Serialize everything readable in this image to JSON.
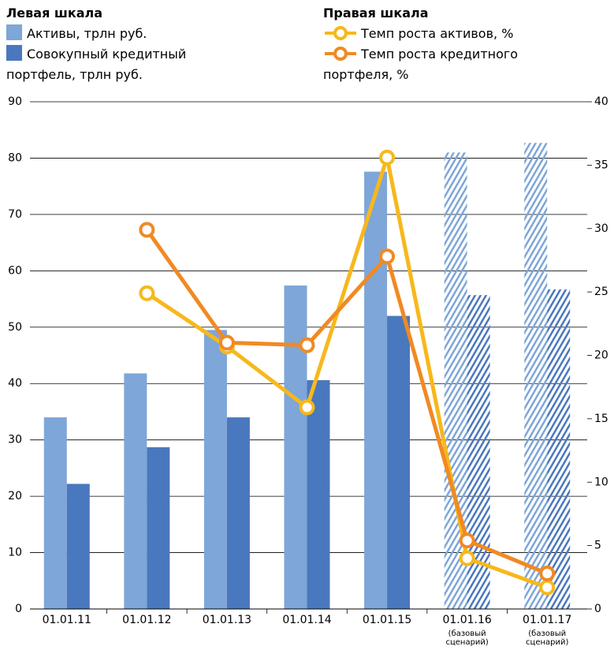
{
  "chart_data": {
    "type": "bar_line",
    "legend_left_title": "Левая шкала",
    "legend_right_title": "Правая шкала",
    "categories": [
      "01.01.11",
      "01.01.12",
      "01.01.13",
      "01.01.14",
      "01.01.15",
      "01.01.16",
      "01.01.17"
    ],
    "category_notes": [
      null,
      null,
      null,
      null,
      null,
      [
        "(базовый",
        "сценарий)"
      ],
      [
        "(базовый",
        "сценарий)"
      ]
    ],
    "forecast": [
      false,
      false,
      false,
      false,
      false,
      true,
      true
    ],
    "series": [
      {
        "name": "Активы, трлн руб.",
        "color": "#7ea6d8",
        "kind": "bar",
        "axis": "y",
        "values": [
          34,
          41.8,
          49.5,
          57.4,
          77.6,
          81,
          82.7
        ]
      },
      {
        "name": "Совокупный кредитный портфель, трлн руб.",
        "color": "#4a78be",
        "kind": "bar",
        "axis": "y",
        "values": [
          22.2,
          28.7,
          34,
          40.6,
          52,
          55.7,
          56.7
        ]
      },
      {
        "name": "Темп роста активов, %",
        "color": "#f7b81c",
        "kind": "line",
        "axis": "y2",
        "values": [
          null,
          24.9,
          20.7,
          15.9,
          35.6,
          4.0,
          1.7
        ]
      },
      {
        "name": "Темп роста кредитного портфеля, %",
        "color": "#f08a24",
        "kind": "line",
        "axis": "y2",
        "values": [
          null,
          29.9,
          21.0,
          20.8,
          27.8,
          5.4,
          2.8
        ]
      }
    ],
    "ylim": [
      0,
      90
    ],
    "yticks": [
      0,
      10,
      20,
      30,
      40,
      50,
      60,
      70,
      80,
      90
    ],
    "y2lim": [
      0,
      40
    ],
    "y2ticks": [
      0,
      5,
      10,
      15,
      20,
      25,
      30,
      35,
      40
    ],
    "grid": true
  }
}
